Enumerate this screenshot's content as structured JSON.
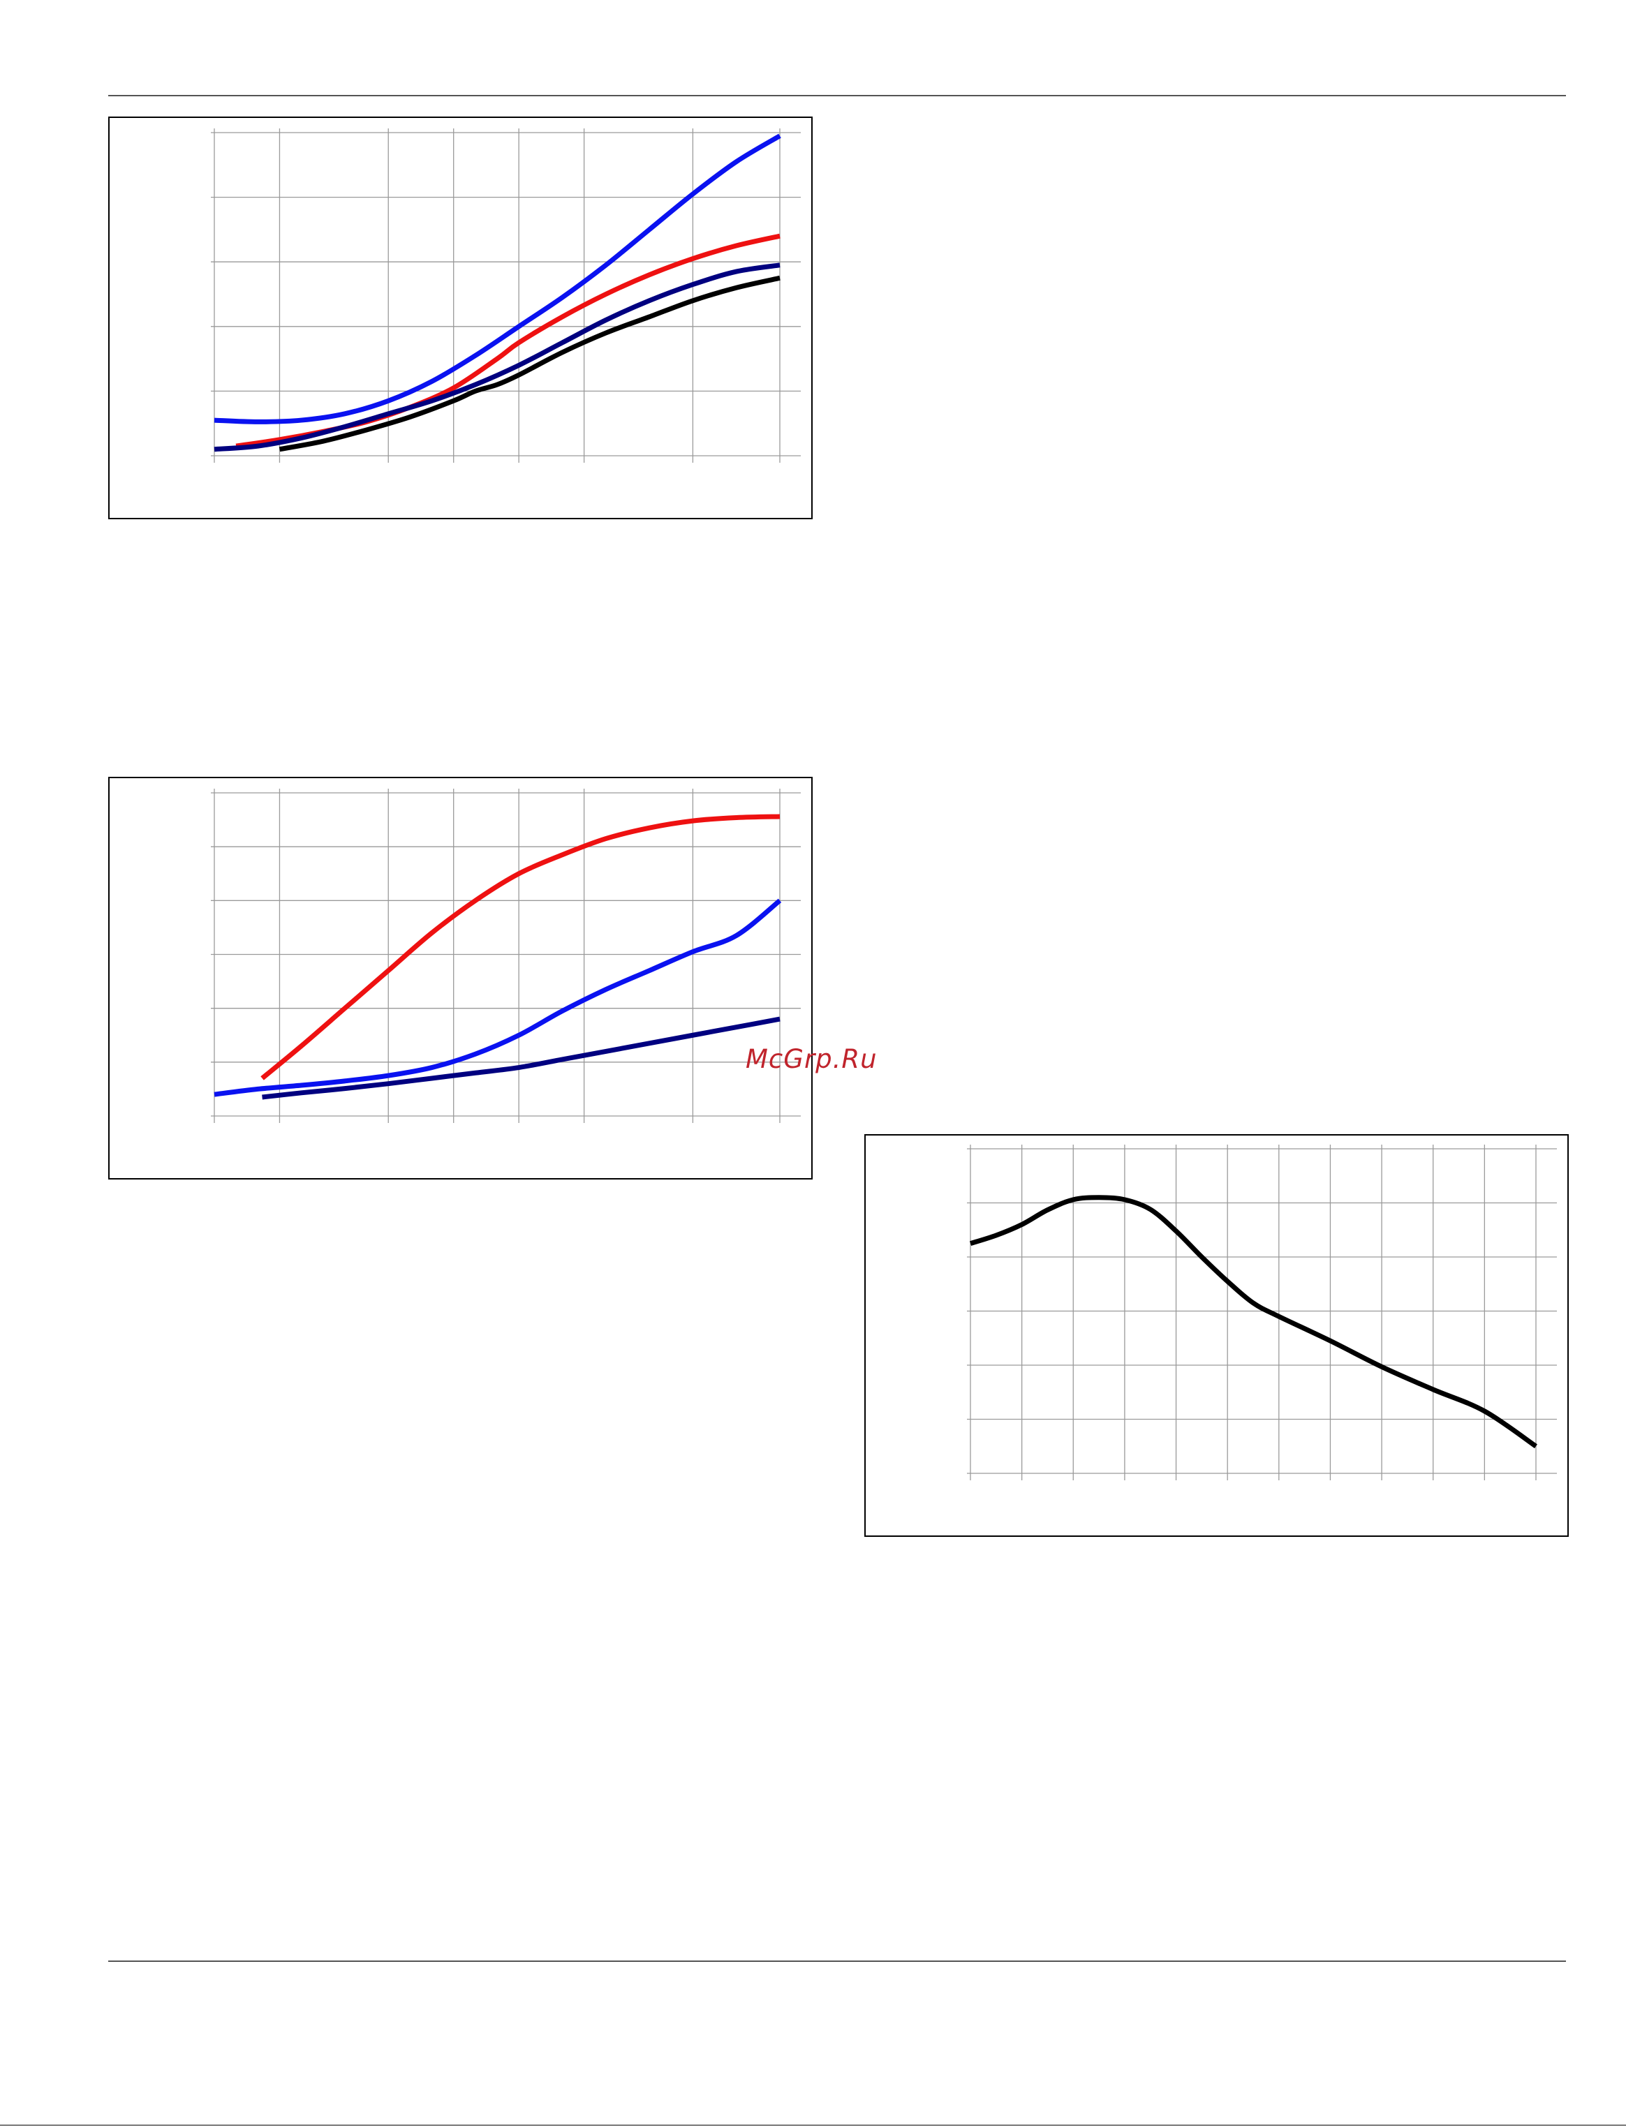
{
  "page": {
    "watermark": "McGrp.Ru",
    "watermark_color": "#c0242c",
    "rule_color": "#555555"
  },
  "chart_data": [
    {
      "type": "line",
      "title": "",
      "xlabel": "",
      "ylabel": "",
      "xlim": [
        0,
        130
      ],
      "ylim": [
        0,
        100
      ],
      "x_gridlines": [
        15,
        40,
        55,
        70,
        85,
        110,
        130
      ],
      "y_gridlines": [
        0,
        20,
        40,
        60,
        80,
        100
      ],
      "grid": true,
      "legend": "none",
      "series": [
        {
          "color": "#0a12f0",
          "x": [
            0,
            10,
            20,
            30,
            40,
            50,
            60,
            70,
            80,
            90,
            100,
            110,
            120,
            130
          ],
          "y": [
            11,
            10.5,
            11,
            13,
            17,
            23,
            31,
            40,
            49,
            59,
            70,
            81,
            91,
            99
          ]
        },
        {
          "color": "#ee1111",
          "x": [
            5,
            15,
            25,
            35,
            45,
            55,
            65,
            70,
            80,
            90,
            100,
            110,
            120,
            130
          ],
          "y": [
            3,
            5,
            7.5,
            10.5,
            15,
            21,
            30,
            35,
            43,
            50,
            56,
            61,
            65,
            68
          ]
        },
        {
          "color": "#000080",
          "x": [
            0,
            10,
            20,
            30,
            40,
            50,
            60,
            70,
            80,
            90,
            100,
            110,
            120,
            130
          ],
          "y": [
            2,
            3,
            5.5,
            9,
            13,
            17,
            22,
            28,
            35,
            42,
            48,
            53,
            57,
            59
          ]
        },
        {
          "color": "#000000",
          "x": [
            15,
            25,
            35,
            45,
            55,
            60,
            65,
            70,
            80,
            90,
            100,
            110,
            120,
            130
          ],
          "y": [
            2,
            4.5,
            8,
            12,
            17,
            20,
            22,
            25,
            32,
            38,
            43,
            48,
            52,
            55
          ]
        }
      ]
    },
    {
      "type": "line",
      "title": "",
      "xlabel": "",
      "ylabel": "",
      "xlim": [
        0,
        130
      ],
      "ylim": [
        0,
        60
      ],
      "x_gridlines": [
        15,
        40,
        55,
        70,
        85,
        110,
        130
      ],
      "y_gridlines": [
        0,
        10,
        20,
        30,
        40,
        50,
        60
      ],
      "grid": true,
      "legend": "none",
      "series": [
        {
          "color": "#ee1111",
          "x": [
            11,
            20,
            30,
            40,
            50,
            60,
            70,
            80,
            90,
            100,
            110,
            120,
            130
          ],
          "y": [
            7,
            13,
            20,
            27,
            34,
            40,
            45,
            48.5,
            51.5,
            53.5,
            54.8,
            55.4,
            55.6
          ]
        },
        {
          "color": "#0a12f0",
          "x": [
            0,
            10,
            20,
            30,
            40,
            50,
            60,
            70,
            80,
            90,
            100,
            110,
            120,
            130
          ],
          "y": [
            4,
            5,
            5.7,
            6.5,
            7.5,
            9,
            11.5,
            15,
            19.5,
            23.5,
            27,
            30.5,
            33.5,
            40
          ]
        },
        {
          "color": "#000080",
          "x": [
            11,
            20,
            30,
            40,
            50,
            60,
            70,
            80,
            90,
            100,
            110,
            120,
            130
          ],
          "y": [
            3.5,
            4.3,
            5.1,
            6,
            7,
            8,
            9,
            10.5,
            12,
            13.5,
            15,
            16.5,
            18
          ]
        }
      ]
    },
    {
      "type": "line",
      "title": "",
      "xlabel": "",
      "ylabel": "",
      "xlim": [
        0,
        110
      ],
      "ylim": [
        0,
        60
      ],
      "x_gridlines": [
        10,
        20,
        30,
        40,
        50,
        60,
        70,
        80,
        90,
        100,
        110
      ],
      "y_gridlines": [
        0,
        10,
        20,
        30,
        40,
        50,
        60
      ],
      "grid": true,
      "legend": "none",
      "series": [
        {
          "color": "#000000",
          "x": [
            0,
            5,
            10,
            15,
            20,
            25,
            30,
            35,
            40,
            45,
            50,
            55,
            60,
            70,
            80,
            90,
            100,
            110
          ],
          "y": [
            42.5,
            44,
            46,
            48.7,
            50.6,
            51,
            50.6,
            48.8,
            44.8,
            40,
            35.5,
            31.5,
            29,
            24.5,
            19.7,
            15.5,
            11.5,
            5
          ]
        }
      ]
    }
  ]
}
